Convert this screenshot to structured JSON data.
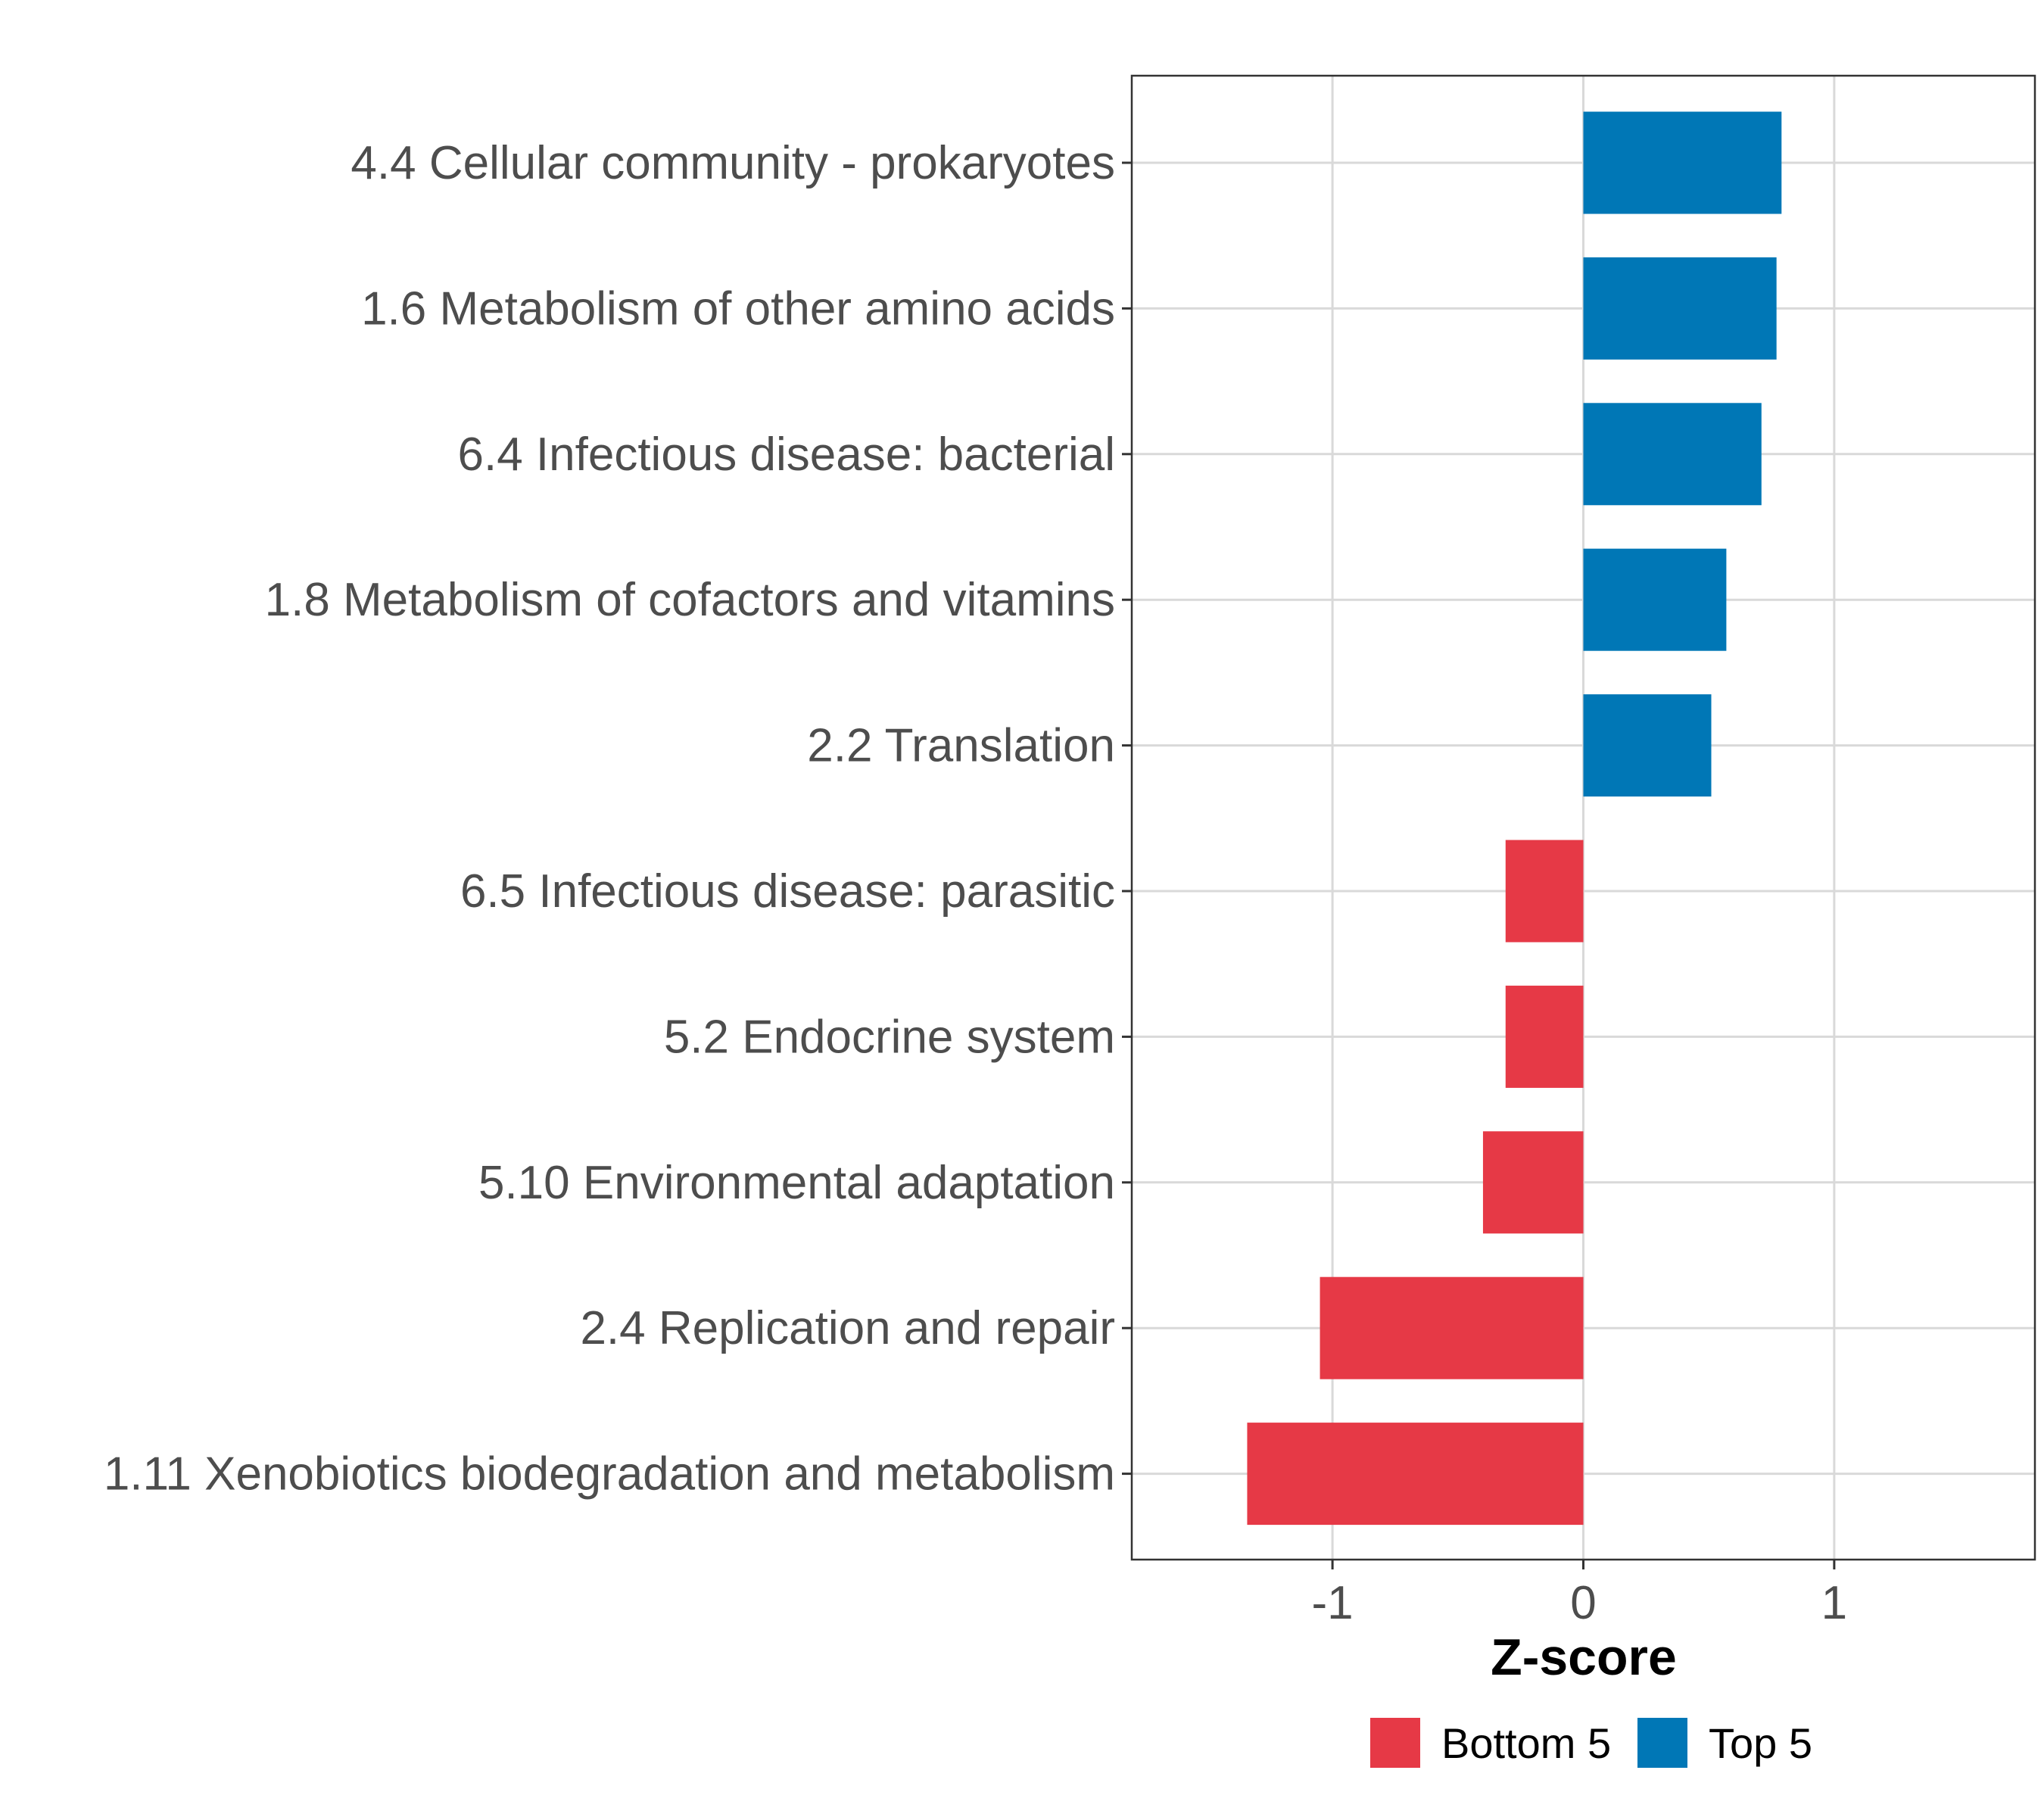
{
  "chart_data": {
    "type": "bar",
    "orientation": "horizontal",
    "categories": [
      "4.4 Cellular community - prokaryotes",
      "1.6 Metabolism of other amino acids",
      "6.4 Infectious disease: bacterial",
      "1.8 Metabolism of cofactors and vitamins",
      "2.2 Translation",
      "6.5 Infectious disease: parasitic",
      "5.2 Endocrine system",
      "5.10 Environmental adaptation",
      "2.4 Replication and repair",
      "1.11 Xenobiotics biodegradation and metabolism"
    ],
    "values": [
      0.79,
      0.77,
      0.71,
      0.57,
      0.51,
      -0.31,
      -0.31,
      -0.4,
      -1.05,
      -1.34
    ],
    "groups": [
      "Top 5",
      "Top 5",
      "Top 5",
      "Top 5",
      "Top 5",
      "Bottom 5",
      "Bottom 5",
      "Bottom 5",
      "Bottom 5",
      "Bottom 5"
    ],
    "xlabel": "Z-score",
    "ylabel": "",
    "xlim": [
      -1.8,
      1.8
    ],
    "xticks": [
      -1,
      0,
      1
    ],
    "xtick_labels": [
      "-1",
      "0",
      "1"
    ],
    "grid": true,
    "legend": {
      "position": "bottom",
      "entries": [
        {
          "label": "Bottom 5",
          "color": "#E63946"
        },
        {
          "label": "Top 5",
          "color": "#0077B6"
        }
      ]
    }
  }
}
